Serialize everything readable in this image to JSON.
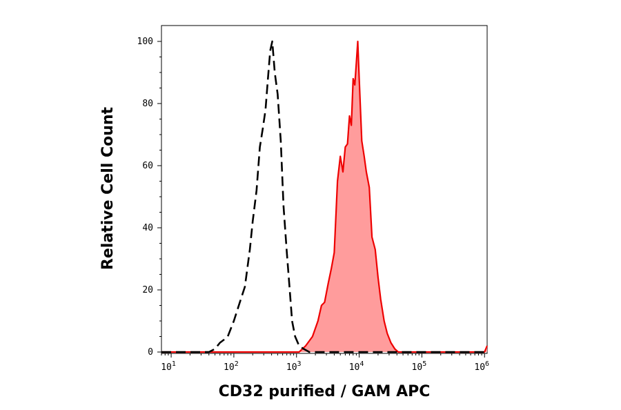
{
  "chart_data": {
    "type": "area",
    "xlabel": "CD32 purified / GAM APC",
    "ylabel": "Relative Cell Count",
    "x_scale": "log",
    "xlim": [
      7,
      1100000
    ],
    "ylim": [
      0,
      103
    ],
    "x_ticks": [
      {
        "value": 10,
        "base": "10",
        "exp": "1"
      },
      {
        "value": 100,
        "base": "10",
        "exp": "2"
      },
      {
        "value": 1000,
        "base": "10",
        "exp": "3"
      },
      {
        "value": 10000,
        "base": "10",
        "exp": "4"
      },
      {
        "value": 100000,
        "base": "10",
        "exp": "5"
      },
      {
        "value": 1000000,
        "base": "10",
        "exp": "6"
      }
    ],
    "y_ticks": [
      0,
      20,
      40,
      60,
      80,
      100
    ],
    "grid": false,
    "legend": "none",
    "series": [
      {
        "style": "dashed-line",
        "color": "#000000",
        "points": [
          [
            7,
            0
          ],
          [
            40,
            0
          ],
          [
            50,
            1
          ],
          [
            60,
            3
          ],
          [
            70,
            4
          ],
          [
            80,
            5
          ],
          [
            100,
            10
          ],
          [
            120,
            15
          ],
          [
            150,
            21
          ],
          [
            180,
            33
          ],
          [
            200,
            42
          ],
          [
            230,
            52
          ],
          [
            260,
            66
          ],
          [
            290,
            72
          ],
          [
            320,
            78
          ],
          [
            350,
            88
          ],
          [
            380,
            97
          ],
          [
            410,
            100
          ],
          [
            450,
            90
          ],
          [
            500,
            83
          ],
          [
            560,
            68
          ],
          [
            620,
            47
          ],
          [
            700,
            32
          ],
          [
            780,
            20
          ],
          [
            850,
            10
          ],
          [
            950,
            5
          ],
          [
            1100,
            2
          ],
          [
            1300,
            1
          ],
          [
            1600,
            0
          ],
          [
            1100000,
            0
          ]
        ]
      },
      {
        "style": "filled-area",
        "color": "#ee0000",
        "fill": "#ff9c9c",
        "points": [
          [
            7,
            0
          ],
          [
            1100,
            0
          ],
          [
            1400,
            2
          ],
          [
            1800,
            5
          ],
          [
            2200,
            10
          ],
          [
            2500,
            15
          ],
          [
            2800,
            16
          ],
          [
            3200,
            22
          ],
          [
            3600,
            27
          ],
          [
            4000,
            32
          ],
          [
            4500,
            55
          ],
          [
            5000,
            63
          ],
          [
            5500,
            58
          ],
          [
            6000,
            66
          ],
          [
            6500,
            67
          ],
          [
            7000,
            76
          ],
          [
            7500,
            73
          ],
          [
            8000,
            88
          ],
          [
            8500,
            86
          ],
          [
            9000,
            93
          ],
          [
            9500,
            100
          ],
          [
            10000,
            88
          ],
          [
            11000,
            68
          ],
          [
            12000,
            63
          ],
          [
            13000,
            58
          ],
          [
            14500,
            53
          ],
          [
            16000,
            37
          ],
          [
            18000,
            33
          ],
          [
            20000,
            24
          ],
          [
            22000,
            17
          ],
          [
            25000,
            10
          ],
          [
            28000,
            6
          ],
          [
            32000,
            3
          ],
          [
            37000,
            1
          ],
          [
            42000,
            0
          ],
          [
            300000,
            0
          ],
          [
            1000000,
            0
          ],
          [
            1100000,
            2
          ]
        ]
      }
    ]
  }
}
